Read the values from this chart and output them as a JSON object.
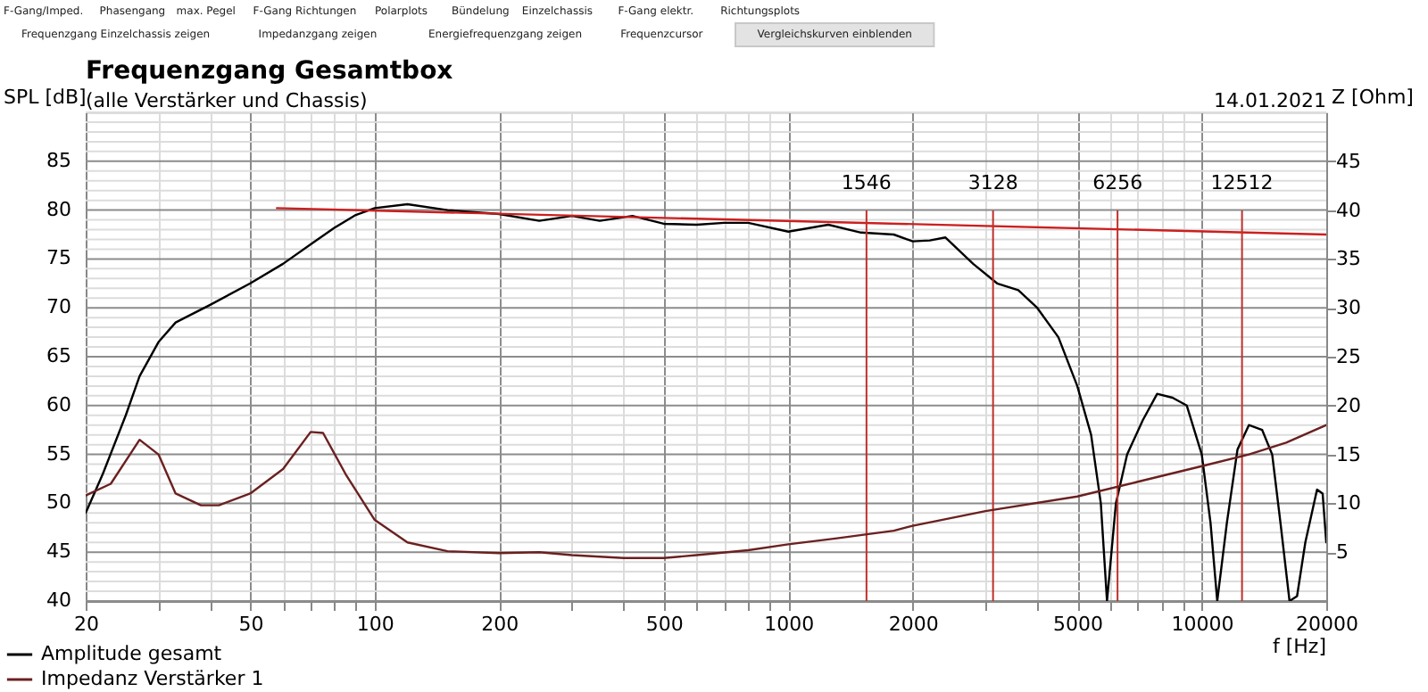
{
  "chart_data": {
    "type": "line",
    "title": "Frequenzgang Gesamtbox",
    "subtitle": "(alle Verstärker und Chassis)",
    "xlabel": "f [Hz]",
    "ylabel": "SPL [dB]",
    "y2label": "Z [Ohm]",
    "log": "x",
    "grid": true,
    "legend": "bottom left",
    "line_style": "solid",
    "marker": "none",
    "annotations": [
      "F-Gang/Imped.",
      "Phasengang",
      "max. Pegel",
      "F-Gang Richtungen",
      "Polarplots",
      "Bündelung",
      "Einzelchassis",
      "F-Gang elektr.",
      "Richtungsplots",
      "Frequenzgang Einzelchassis zeigen",
      "Impedanzgang zeigen",
      "Energiefrequenzgang zeigen",
      "Frequenzcursor",
      "Vergleichskurven einblenden",
      "14.01.2021"
    ],
    "xlim": [
      20,
      20000
    ],
    "ylim": [
      40,
      90
    ],
    "y2lim": [
      0,
      50
    ],
    "xticks": [
      20,
      {
        "value": 30,
        "label": null
      },
      {
        "value": 40,
        "label": null
      },
      50,
      {
        "value": 60,
        "label": null
      },
      {
        "value": 70,
        "label": null
      },
      {
        "value": 80,
        "label": null
      },
      {
        "value": 90,
        "label": null
      },
      100,
      200,
      {
        "value": 300,
        "label": null
      },
      {
        "value": 400,
        "label": null
      },
      500,
      {
        "value": 600,
        "label": null
      },
      {
        "value": 700,
        "label": null
      },
      {
        "value": 800,
        "label": null
      },
      {
        "value": 900,
        "label": null
      },
      1000,
      2000,
      {
        "value": 3000,
        "label": null
      },
      {
        "value": 4000,
        "label": null
      },
      5000,
      {
        "value": 6000,
        "label": null
      },
      {
        "value": 7000,
        "label": null
      },
      {
        "value": 8000,
        "label": null
      },
      {
        "value": 9000,
        "label": null
      },
      10000,
      20000
    ],
    "yticks": [
      40,
      {
        "value": 41,
        "label": null
      },
      {
        "value": 42,
        "label": null
      },
      {
        "value": 43,
        "label": null
      },
      {
        "value": 44,
        "label": null
      },
      45,
      {
        "value": 46,
        "label": null
      },
      {
        "value": 47,
        "label": null
      },
      {
        "value": 48,
        "label": null
      },
      {
        "value": 49,
        "label": null
      },
      50,
      {
        "value": 51,
        "label": null
      },
      {
        "value": 52,
        "label": null
      },
      {
        "value": 53,
        "label": null
      },
      {
        "value": 54,
        "label": null
      },
      55,
      {
        "value": 56,
        "label": null
      },
      {
        "value": 57,
        "label": null
      },
      {
        "value": 58,
        "label": null
      },
      {
        "value": 59,
        "label": null
      },
      60,
      {
        "value": 61,
        "label": null
      },
      {
        "value": 62,
        "label": null
      },
      {
        "value": 63,
        "label": null
      },
      {
        "value": 64,
        "label": null
      },
      65,
      {
        "value": 66,
        "label": null
      },
      {
        "value": 67,
        "label": null
      },
      {
        "value": 68,
        "label": null
      },
      {
        "value": 69,
        "label": null
      },
      70,
      {
        "value": 71,
        "label": null
      },
      {
        "value": 72,
        "label": null
      },
      {
        "value": 73,
        "label": null
      },
      {
        "value": 74,
        "label": null
      },
      75,
      {
        "value": 76,
        "label": null
      },
      {
        "value": 77,
        "label": null
      },
      {
        "value": 78,
        "label": null
      },
      {
        "value": 79,
        "label": null
      },
      80,
      {
        "value": 81,
        "label": null
      },
      {
        "value": 82,
        "label": null
      },
      {
        "value": 83,
        "label": null
      },
      {
        "value": 84,
        "label": null
      },
      85,
      {
        "value": 86,
        "label": null
      },
      {
        "value": 87,
        "label": null
      },
      {
        "value": 88,
        "label": null
      },
      {
        "value": 89,
        "label": null
      },
      {
        "value": 90,
        "label": null
      }
    ],
    "y2ticks": [
      5,
      10,
      15,
      20,
      25,
      30,
      35,
      40,
      45
    ],
    "ref_lines": [
      {
        "axis": "x",
        "value": 1546,
        "label": "1546",
        "color": "#c0302a"
      },
      {
        "axis": "x",
        "value": 3128,
        "label": "3128",
        "color": "#c0302a"
      },
      {
        "axis": "x",
        "value": 6256,
        "label": "6256",
        "color": "#c0302a"
      },
      {
        "axis": "x",
        "value": 12512,
        "label": "12512",
        "color": "#c0302a"
      }
    ],
    "series": [
      {
        "name": "Amplitude gesamt",
        "color": "#000000",
        "x": [
          20,
          22,
          25,
          27,
          30,
          33,
          40,
          50,
          60,
          70,
          80,
          90,
          100,
          120,
          150,
          200,
          250,
          300,
          350,
          420,
          500,
          600,
          700,
          800,
          1000,
          1250,
          1500,
          1800,
          2000,
          2200,
          2400,
          2800,
          3200,
          3600,
          4000,
          4500,
          5000,
          5400,
          5700,
          5900,
          6200,
          6600,
          7200,
          7800,
          8500,
          9200,
          10000,
          10500,
          10900,
          11500,
          12200,
          13000,
          14000,
          14800,
          15500,
          16300,
          17000,
          17800,
          19000,
          19600,
          20000
        ],
        "values": [
          49,
          53,
          59,
          63,
          66.5,
          68.5,
          70.3,
          72.5,
          74.5,
          76.5,
          78.2,
          79.5,
          80.2,
          80.6,
          80,
          79.6,
          78.9,
          79.4,
          78.9,
          79.4,
          78.6,
          78.5,
          78.7,
          78.7,
          77.8,
          78.5,
          77.7,
          77.5,
          76.8,
          76.9,
          77.2,
          74.5,
          72.5,
          71.8,
          70,
          67,
          62,
          57,
          50,
          40,
          50,
          55,
          58.5,
          61.2,
          60.8,
          60,
          55,
          48,
          40,
          48,
          55.5,
          58,
          57.5,
          55,
          48,
          40,
          40.5,
          46,
          51.4,
          51,
          46
        ]
      },
      {
        "name": "Impedanz Verstärker 1",
        "color": "#6b2020",
        "axis": "y2",
        "x": [
          20,
          23,
          27,
          30,
          33,
          38,
          42,
          50,
          60,
          70,
          75,
          85,
          100,
          120,
          150,
          200,
          250,
          300,
          400,
          500,
          600,
          800,
          1000,
          1300,
          1800,
          2000,
          3000,
          5000,
          7000,
          10000,
          13000,
          16000,
          20000
        ],
        "values": [
          10.8,
          12,
          16.5,
          15,
          11,
          9.8,
          9.8,
          11,
          13.5,
          17.3,
          17.2,
          13,
          8.3,
          6,
          5.1,
          4.9,
          5,
          4.7,
          4.4,
          4.4,
          4.7,
          5.2,
          5.8,
          6.4,
          7.2,
          7.7,
          9.2,
          10.7,
          12.2,
          13.8,
          15,
          16.2,
          18
        ]
      },
      {
        "type": "line",
        "color": "#cc1f1f",
        "x": [
          58,
          20000
        ],
        "values": [
          80.2,
          77.5
        ]
      }
    ]
  }
}
